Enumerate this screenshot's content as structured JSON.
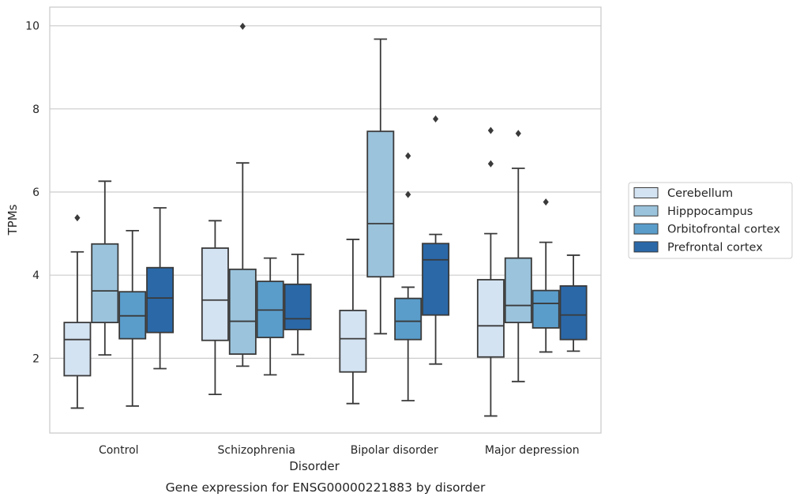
{
  "chart_data": {
    "type": "box",
    "caption": "Gene expression for ENSG00000221883 by disorder",
    "xlabel": "Disorder",
    "ylabel": "TPMs",
    "ylim": [
      0.2,
      10.45
    ],
    "yticks": [
      2,
      4,
      6,
      8,
      10
    ],
    "grid": "horizontal",
    "legend_position": "right",
    "categories": [
      "Control",
      "Schizophrenia",
      "Bipolar disorder",
      "Major depression"
    ],
    "series": [
      {
        "name": "Cerebellum",
        "color": "#d4e3f2",
        "boxes": [
          {
            "whisker_low": 0.8,
            "q1": 1.58,
            "median": 2.45,
            "q3": 2.86,
            "whisker_high": 4.56,
            "outliers": [
              5.38
            ]
          },
          {
            "whisker_low": 1.13,
            "q1": 2.43,
            "median": 3.4,
            "q3": 4.65,
            "whisker_high": 5.31,
            "outliers": []
          },
          {
            "whisker_low": 0.91,
            "q1": 1.67,
            "median": 2.47,
            "q3": 3.15,
            "whisker_high": 4.86,
            "outliers": []
          },
          {
            "whisker_low": 0.61,
            "q1": 2.03,
            "median": 2.78,
            "q3": 3.89,
            "whisker_high": 5.0,
            "outliers": [
              6.68,
              7.48
            ]
          }
        ]
      },
      {
        "name": "Hipppocampus",
        "color": "#9bc3dc",
        "boxes": [
          {
            "whisker_low": 2.08,
            "q1": 2.86,
            "median": 3.62,
            "q3": 4.75,
            "whisker_high": 6.26,
            "outliers": []
          },
          {
            "whisker_low": 1.81,
            "q1": 2.1,
            "median": 2.89,
            "q3": 4.14,
            "whisker_high": 6.7,
            "outliers": [
              9.99
            ]
          },
          {
            "whisker_low": 2.59,
            "q1": 3.96,
            "median": 5.24,
            "q3": 7.46,
            "whisker_high": 9.68,
            "outliers": []
          },
          {
            "whisker_low": 1.44,
            "q1": 2.86,
            "median": 3.27,
            "q3": 4.41,
            "whisker_high": 6.57,
            "outliers": [
              7.41
            ]
          }
        ]
      },
      {
        "name": "Orbitofrontal cortex",
        "color": "#5a9dcb",
        "boxes": [
          {
            "whisker_low": 0.85,
            "q1": 2.47,
            "median": 3.02,
            "q3": 3.6,
            "whisker_high": 5.07,
            "outliers": []
          },
          {
            "whisker_low": 1.6,
            "q1": 2.5,
            "median": 3.16,
            "q3": 3.85,
            "whisker_high": 4.41,
            "outliers": []
          },
          {
            "whisker_low": 0.98,
            "q1": 2.45,
            "median": 2.89,
            "q3": 3.44,
            "whisker_high": 3.71,
            "outliers": [
              5.94,
              6.87
            ]
          },
          {
            "whisker_low": 2.15,
            "q1": 2.73,
            "median": 3.32,
            "q3": 3.63,
            "whisker_high": 4.79,
            "outliers": [
              5.76
            ]
          }
        ]
      },
      {
        "name": "Prefrontal cortex",
        "color": "#2a68a8",
        "boxes": [
          {
            "whisker_low": 1.75,
            "q1": 2.62,
            "median": 3.45,
            "q3": 4.18,
            "whisker_high": 5.62,
            "outliers": []
          },
          {
            "whisker_low": 2.09,
            "q1": 2.69,
            "median": 2.95,
            "q3": 3.78,
            "whisker_high": 4.5,
            "outliers": []
          },
          {
            "whisker_low": 1.86,
            "q1": 3.04,
            "median": 4.37,
            "q3": 4.76,
            "whisker_high": 4.98,
            "outliers": [
              7.76
            ]
          },
          {
            "whisker_low": 2.17,
            "q1": 2.45,
            "median": 3.04,
            "q3": 3.74,
            "whisker_high": 4.48,
            "outliers": []
          }
        ]
      }
    ]
  }
}
